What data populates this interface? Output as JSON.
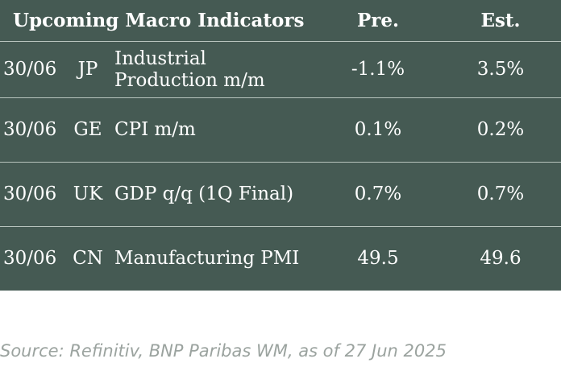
{
  "header": {
    "title": "Upcoming Macro Indicators",
    "prev": "Pre.",
    "est": "Est."
  },
  "rows": [
    {
      "date": "30/06",
      "country": "JP",
      "indicator": "Industrial Production m/m",
      "prev": "-1.1%",
      "est": "3.5%"
    },
    {
      "date": "30/06",
      "country": "GE",
      "indicator": "CPI m/m",
      "prev": "0.1%",
      "est": "0.2%"
    },
    {
      "date": "30/06",
      "country": "UK",
      "indicator": "GDP q/q (1Q Final)",
      "prev": "0.7%",
      "est": "0.7%"
    },
    {
      "date": "30/06",
      "country": "CN",
      "indicator": "Manufacturing PMI",
      "prev": "49.5",
      "est": "49.6"
    }
  ],
  "source": "Source: Refinitiv, BNP Paribas WM, as of 27 Jun 2025",
  "colors": {
    "table_bg": "#455a53",
    "divider": "#b8c4be",
    "text": "#ffffff",
    "source_text": "#9ba39f"
  }
}
